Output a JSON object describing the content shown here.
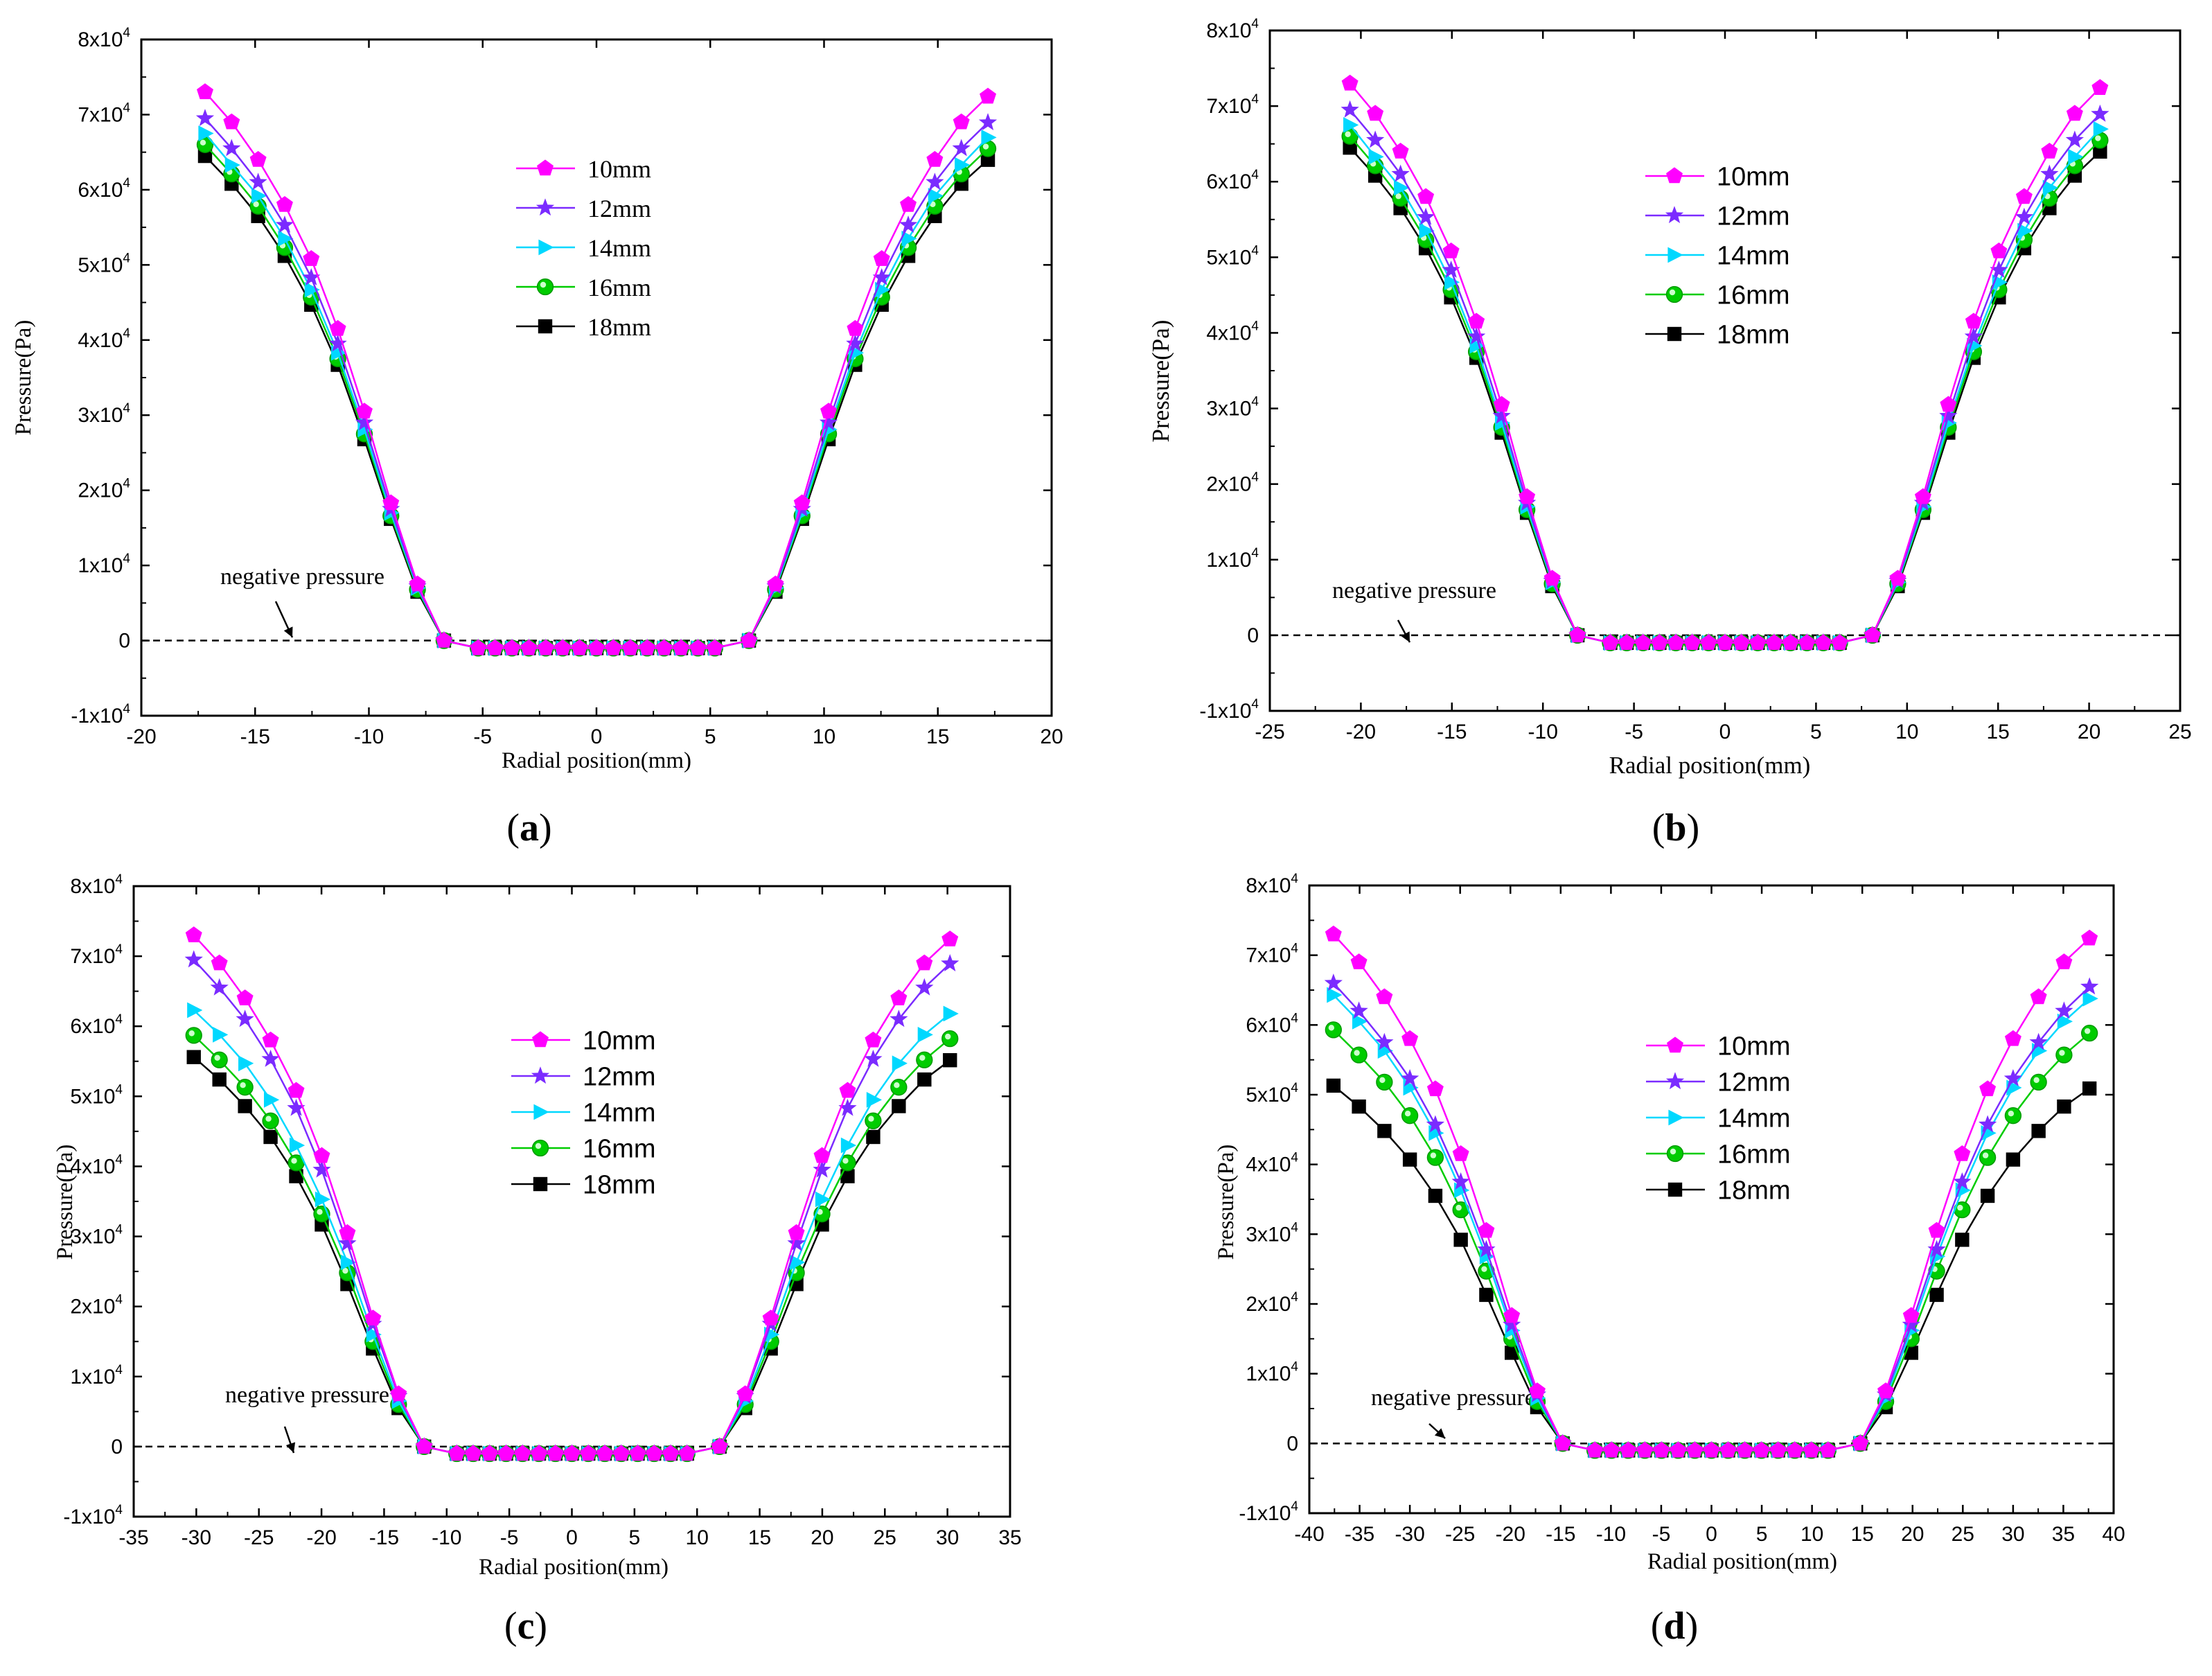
{
  "chart_data": [
    {
      "type": "line",
      "panel_label": "(a)",
      "xlabel": "Radial position(mm)",
      "ylabel": "Pressure(Pa)",
      "xlim": [
        -20,
        20
      ],
      "ylim": [
        -10000,
        80000
      ],
      "xticks": [
        -20,
        -15,
        -10,
        -5,
        0,
        5,
        10,
        15,
        20
      ],
      "xtick_labels": [
        "-20",
        "-15",
        "-10",
        "-5",
        "0",
        "5",
        "10",
        "15",
        "20"
      ],
      "yticks": [
        -10000,
        0,
        10000,
        20000,
        30000,
        40000,
        50000,
        60000,
        70000,
        80000
      ],
      "ytick_labels": [
        [
          "-1x10",
          "4"
        ],
        [
          "0",
          ""
        ],
        [
          "1x10",
          "4"
        ],
        [
          "2x10",
          "4"
        ],
        [
          "3x10",
          "4"
        ],
        [
          "4x10",
          "4"
        ],
        [
          "5x10",
          "4"
        ],
        [
          "6x10",
          "4"
        ],
        [
          "7x10",
          "4"
        ],
        [
          "8x10",
          "4"
        ]
      ],
      "annotation": "negative pressure",
      "legend_style": "serif",
      "x_edge": 17.2,
      "x_knee": 5.2,
      "x_zero": 6.7,
      "series": [
        {
          "name": "10mm",
          "color": "#ff00ff",
          "marker": "pentagon",
          "values": [
            73000,
            69000,
            64000,
            58000,
            50800,
            41500,
            30500,
            18300,
            7500,
            0,
            -1000
          ]
        },
        {
          "name": "12mm",
          "color": "#7b2bff",
          "marker": "star",
          "values": [
            69500,
            65500,
            61000,
            55300,
            48300,
            39500,
            29000,
            17500,
            7200,
            0,
            -1000
          ]
        },
        {
          "name": "14mm",
          "color": "#00d8ff",
          "marker": "triangle",
          "values": [
            67500,
            63300,
            59200,
            53500,
            46700,
            38300,
            28100,
            17000,
            7000,
            0,
            -1000
          ]
        },
        {
          "name": "16mm",
          "color": "#00cc00",
          "marker": "circle",
          "values": [
            66000,
            62100,
            57800,
            52300,
            45700,
            37500,
            27500,
            16600,
            6800,
            0,
            -1000
          ]
        },
        {
          "name": "18mm",
          "color": "#000000",
          "marker": "square",
          "values": [
            64500,
            60800,
            56500,
            51200,
            44700,
            36700,
            26800,
            16200,
            6500,
            0,
            -1000
          ]
        }
      ]
    },
    {
      "type": "line",
      "panel_label": "(b)",
      "xlabel": "Radial position(mm)",
      "ylabel": "Pressure(Pa)",
      "xlim": [
        -25,
        25
      ],
      "ylim": [
        -10000,
        80000
      ],
      "xticks": [
        -25,
        -20,
        -15,
        -10,
        -5,
        0,
        5,
        10,
        15,
        20,
        25
      ],
      "xtick_labels": [
        "-25",
        "-20",
        "-15",
        "-10",
        "-5",
        "0",
        "5",
        "10",
        "15",
        "20",
        "25"
      ],
      "yticks": [
        -10000,
        0,
        10000,
        20000,
        30000,
        40000,
        50000,
        60000,
        70000,
        80000
      ],
      "ytick_labels": [
        [
          "-1x10",
          "4"
        ],
        [
          "0",
          ""
        ],
        [
          "1x10",
          "4"
        ],
        [
          "2x10",
          "4"
        ],
        [
          "3x10",
          "4"
        ],
        [
          "4x10",
          "4"
        ],
        [
          "5x10",
          "4"
        ],
        [
          "6x10",
          "4"
        ],
        [
          "7x10",
          "4"
        ],
        [
          "8x10",
          "4"
        ]
      ],
      "annotation": "negative pressure",
      "legend_style": "sans",
      "x_edge": 20.6,
      "x_knee": 6.3,
      "x_zero": 8.1,
      "series": [
        {
          "name": "10mm",
          "color": "#ff00ff",
          "marker": "pentagon",
          "values": [
            73000,
            69000,
            64000,
            58000,
            50800,
            41500,
            30500,
            18300,
            7500,
            0,
            -1000
          ]
        },
        {
          "name": "12mm",
          "color": "#7b2bff",
          "marker": "star",
          "values": [
            69500,
            65500,
            61000,
            55300,
            48300,
            39500,
            29000,
            17500,
            7200,
            0,
            -1000
          ]
        },
        {
          "name": "14mm",
          "color": "#00d8ff",
          "marker": "triangle",
          "values": [
            67500,
            63300,
            59200,
            53500,
            46700,
            38300,
            28100,
            17000,
            7000,
            0,
            -1000
          ]
        },
        {
          "name": "16mm",
          "color": "#00cc00",
          "marker": "circle",
          "values": [
            66000,
            62100,
            57800,
            52300,
            45700,
            37500,
            27500,
            16600,
            6800,
            0,
            -1000
          ]
        },
        {
          "name": "18mm",
          "color": "#000000",
          "marker": "square",
          "values": [
            64500,
            60800,
            56500,
            51200,
            44700,
            36700,
            26800,
            16200,
            6500,
            0,
            -1000
          ]
        }
      ]
    },
    {
      "type": "line",
      "panel_label": "(c)",
      "xlabel": "Radial position(mm)",
      "ylabel": "Pressure(Pa)",
      "xlim": [
        -35,
        35
      ],
      "ylim": [
        -10000,
        80000
      ],
      "xticks": [
        -35,
        -30,
        -25,
        -20,
        -15,
        -10,
        -5,
        0,
        5,
        10,
        15,
        20,
        25,
        30,
        35
      ],
      "xtick_labels": [
        "-35",
        "-30",
        "-25",
        "-20",
        "-15",
        "-10",
        "-5",
        "0",
        "5",
        "10",
        "15",
        "20",
        "25",
        "30",
        "35"
      ],
      "yticks": [
        -10000,
        0,
        10000,
        20000,
        30000,
        40000,
        50000,
        60000,
        70000,
        80000
      ],
      "ytick_labels": [
        [
          "-1x10",
          "4"
        ],
        [
          "0",
          ""
        ],
        [
          "1x10",
          "4"
        ],
        [
          "2x10",
          "4"
        ],
        [
          "3x10",
          "4"
        ],
        [
          "4x10",
          "4"
        ],
        [
          "5x10",
          "4"
        ],
        [
          "6x10",
          "4"
        ],
        [
          "7x10",
          "4"
        ],
        [
          "8x10",
          "4"
        ]
      ],
      "annotation": "negative pressure",
      "legend_style": "sans",
      "x_edge": 30.2,
      "x_knee": 9.2,
      "x_zero": 11.8,
      "series": [
        {
          "name": "10mm",
          "color": "#ff00ff",
          "marker": "pentagon",
          "values": [
            73000,
            69000,
            64000,
            58000,
            50800,
            41500,
            30500,
            18300,
            7500,
            0,
            -1000
          ]
        },
        {
          "name": "12mm",
          "color": "#7b2bff",
          "marker": "star",
          "values": [
            69500,
            65500,
            61000,
            55300,
            48300,
            39500,
            29000,
            17500,
            7200,
            0,
            -1000
          ]
        },
        {
          "name": "14mm",
          "color": "#00d8ff",
          "marker": "triangle",
          "values": [
            62300,
            58800,
            54700,
            49500,
            43000,
            35300,
            26300,
            16000,
            6500,
            0,
            -1000
          ]
        },
        {
          "name": "16mm",
          "color": "#00cc00",
          "marker": "circle",
          "values": [
            58700,
            55200,
            51300,
            46500,
            40500,
            33200,
            24800,
            15000,
            6000,
            0,
            -1000
          ]
        },
        {
          "name": "18mm",
          "color": "#000000",
          "marker": "square",
          "values": [
            55600,
            52400,
            48600,
            44200,
            38600,
            31700,
            23200,
            14000,
            5500,
            0,
            -1000
          ]
        }
      ]
    },
    {
      "type": "line",
      "panel_label": "(d)",
      "xlabel": "Radial position(mm)",
      "ylabel": "Pressure(Pa)",
      "xlim": [
        -40,
        40
      ],
      "ylim": [
        -10000,
        80000
      ],
      "xticks": [
        -40,
        -35,
        -30,
        -25,
        -20,
        -15,
        -10,
        -5,
        0,
        5,
        10,
        15,
        20,
        25,
        30,
        35,
        40
      ],
      "xtick_labels": [
        "-40",
        "-35",
        "-30",
        "-25",
        "-20",
        "-15",
        "-10",
        "-5",
        "0",
        "5",
        "10",
        "15",
        "20",
        "25",
        "30",
        "35",
        "40"
      ],
      "yticks": [
        -10000,
        0,
        10000,
        20000,
        30000,
        40000,
        50000,
        60000,
        70000,
        80000
      ],
      "ytick_labels": [
        [
          "-1x10",
          "4"
        ],
        [
          "0",
          ""
        ],
        [
          "1x10",
          "4"
        ],
        [
          "2x10",
          "4"
        ],
        [
          "3x10",
          "4"
        ],
        [
          "4x10",
          "4"
        ],
        [
          "5x10",
          "4"
        ],
        [
          "6x10",
          "4"
        ],
        [
          "7x10",
          "4"
        ],
        [
          "8x10",
          "4"
        ]
      ],
      "annotation": "negative pressure",
      "legend_style": "sans",
      "x_edge": 37.6,
      "x_knee": 11.6,
      "x_zero": 14.8,
      "series": [
        {
          "name": "10mm",
          "color": "#ff00ff",
          "marker": "pentagon",
          "values": [
            73000,
            69000,
            64000,
            58000,
            50800,
            41500,
            30500,
            18300,
            7500,
            0,
            -1000
          ]
        },
        {
          "name": "12mm",
          "color": "#7b2bff",
          "marker": "star",
          "values": [
            66000,
            62000,
            57500,
            52300,
            45700,
            37500,
            27800,
            17000,
            7000,
            0,
            -1000
          ]
        },
        {
          "name": "14mm",
          "color": "#00d8ff",
          "marker": "triangle",
          "values": [
            64300,
            60500,
            56300,
            51000,
            44500,
            36300,
            26800,
            16200,
            6500,
            0,
            -1000
          ]
        },
        {
          "name": "16mm",
          "color": "#00cc00",
          "marker": "circle",
          "values": [
            59300,
            55700,
            51800,
            47000,
            41000,
            33500,
            24700,
            15000,
            6000,
            0,
            -1000
          ]
        },
        {
          "name": "18mm",
          "color": "#000000",
          "marker": "square",
          "values": [
            51300,
            48300,
            44800,
            40700,
            35500,
            29200,
            21300,
            13000,
            5200,
            0,
            -1000
          ]
        }
      ]
    }
  ]
}
